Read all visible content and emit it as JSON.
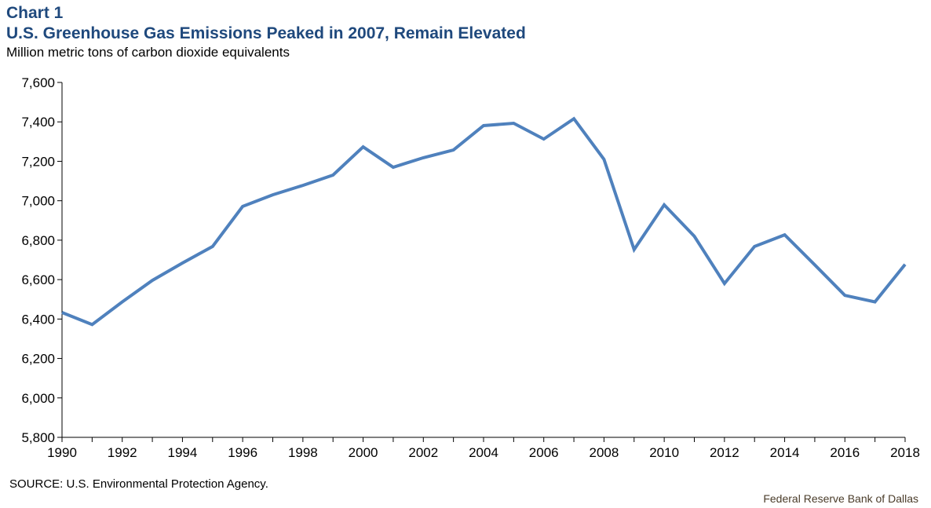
{
  "header": {
    "chart_label": "Chart 1",
    "title": "U.S. Greenhouse Gas Emissions Peaked in 2007, Remain Elevated",
    "subtitle": "Million metric tons of carbon dioxide equivalents"
  },
  "footer": {
    "source": "SOURCE: U.S. Environmental  Protection Agency.",
    "credit": "Federal Reserve  Bank of Dallas"
  },
  "colors": {
    "title": "#1f497d",
    "series_line": "#4f81bd",
    "axis": "#000000"
  },
  "chart_data": {
    "type": "line",
    "title": "U.S. Greenhouse Gas Emissions Peaked in 2007, Remain Elevated",
    "xlabel": "",
    "ylabel": "Million metric tons of carbon dioxide equivalents",
    "x": [
      1990,
      1991,
      1992,
      1993,
      1994,
      1995,
      1996,
      1997,
      1998,
      1999,
      2000,
      2001,
      2002,
      2003,
      2004,
      2005,
      2006,
      2007,
      2008,
      2009,
      2010,
      2011,
      2012,
      2013,
      2014,
      2015,
      2016,
      2017,
      2018
    ],
    "series": [
      {
        "name": "U.S. greenhouse gas emissions",
        "values": [
          6433,
          6372,
          6487,
          6596,
          6684,
          6768,
          6971,
          7030,
          7078,
          7130,
          7273,
          7170,
          7218,
          7257,
          7381,
          7393,
          7313,
          7416,
          7210,
          6752,
          6979,
          6820,
          6580,
          6768,
          6827,
          6675,
          6520,
          6487,
          6677
        ]
      }
    ],
    "xlim": [
      1990,
      2018
    ],
    "ylim": [
      5800,
      7600
    ],
    "x_ticks": [
      "1990",
      "1992",
      "1994",
      "1996",
      "1998",
      "2000",
      "2002",
      "2004",
      "2006",
      "2008",
      "2010",
      "2012",
      "2014",
      "2016",
      "2018"
    ],
    "y_ticks": [
      "5,800",
      "6,000",
      "6,200",
      "6,400",
      "6,600",
      "6,800",
      "7,000",
      "7,200",
      "7,400",
      "7,600"
    ],
    "y_tick_values": [
      5800,
      6000,
      6200,
      6400,
      6600,
      6800,
      7000,
      7200,
      7400,
      7600
    ],
    "grid": false,
    "legend": "none"
  }
}
